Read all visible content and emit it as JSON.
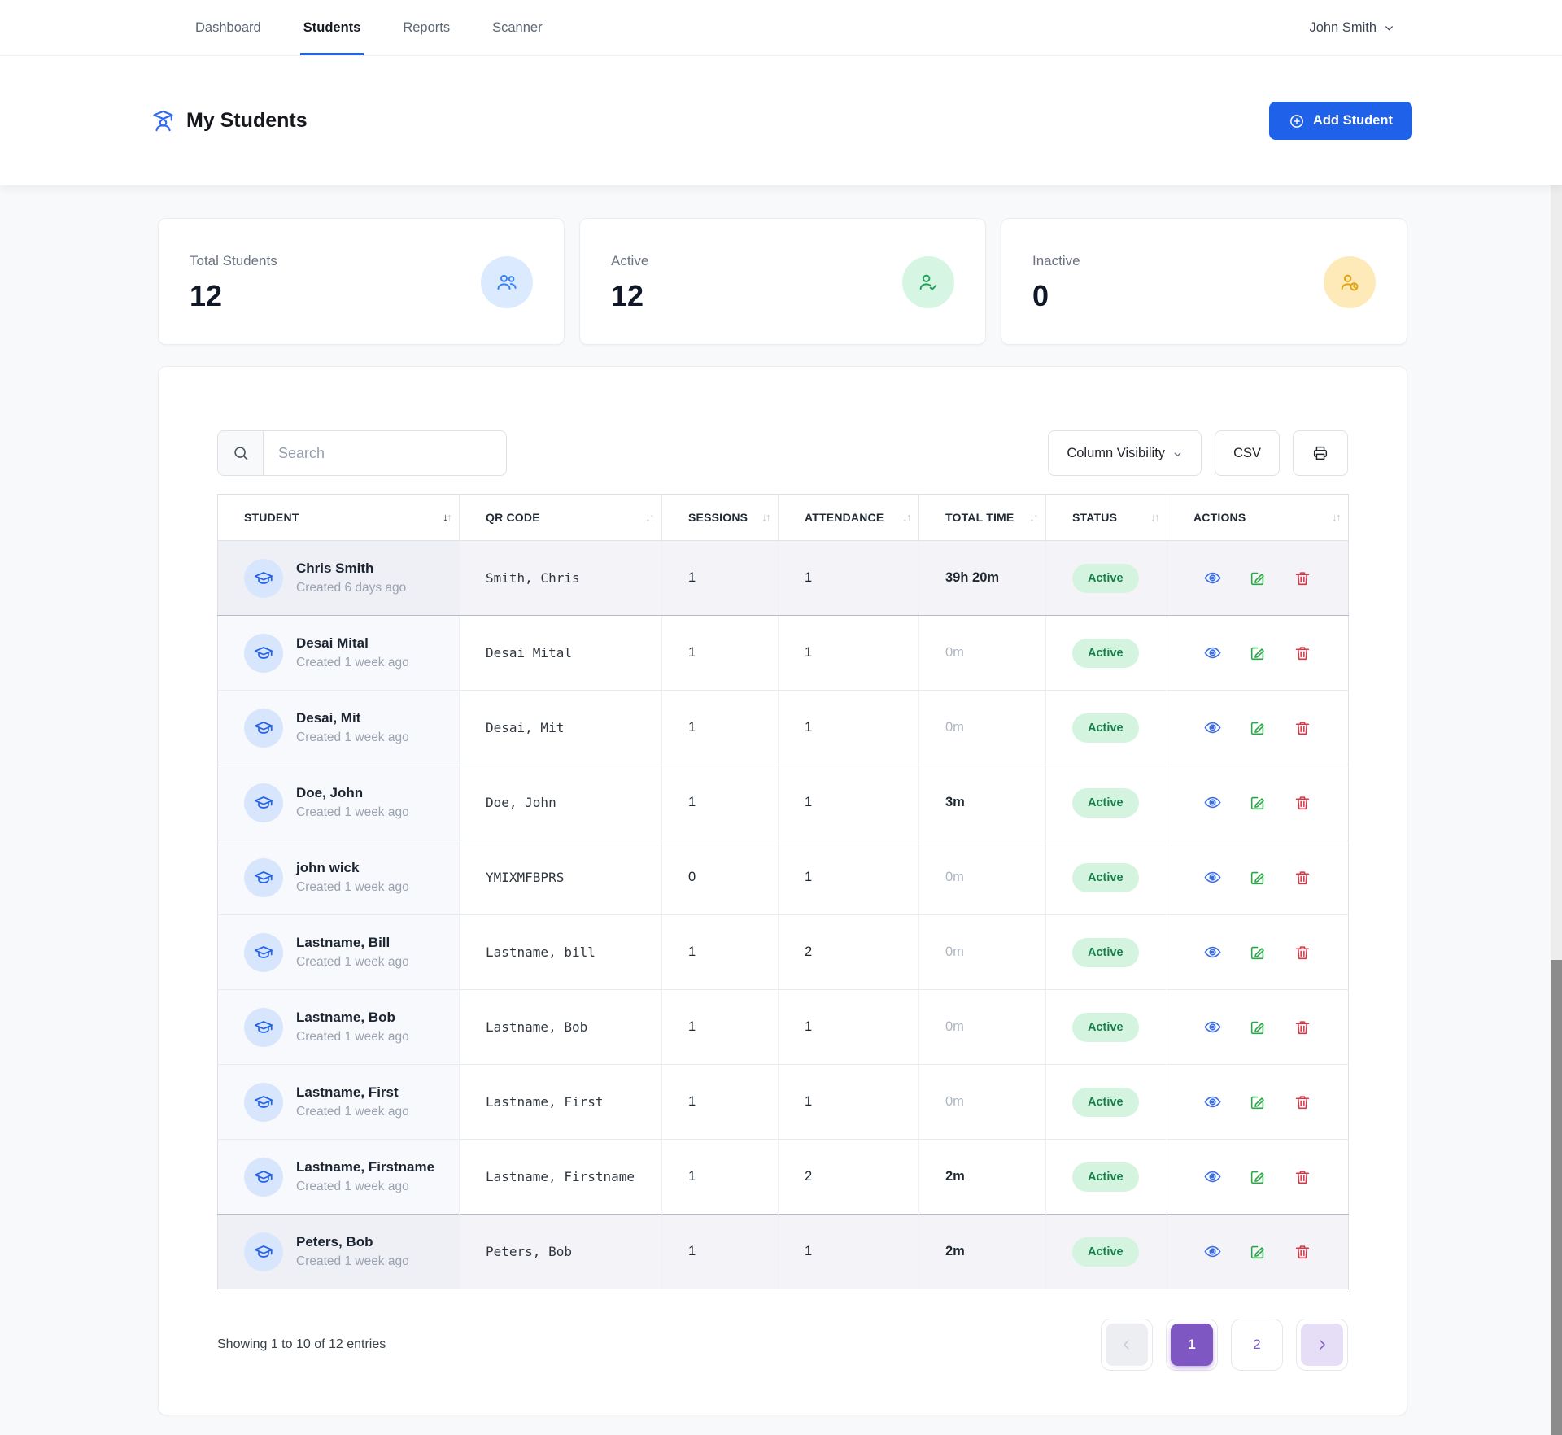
{
  "nav": {
    "items": [
      {
        "label": "Dashboard",
        "active": false
      },
      {
        "label": "Students",
        "active": true
      },
      {
        "label": "Reports",
        "active": false
      },
      {
        "label": "Scanner",
        "active": false
      }
    ],
    "user": {
      "name": "John Smith"
    }
  },
  "header": {
    "title": "My Students",
    "title_icon": "graduate-student-icon",
    "add_button": "Add Student"
  },
  "stats": [
    {
      "label": "Total Students",
      "value": "12",
      "icon": "users-icon",
      "icon_color": "#3b82f6",
      "icon_bg": "#dbeafe"
    },
    {
      "label": "Active",
      "value": "12",
      "icon": "user-check-icon",
      "icon_color": "#22a45d",
      "icon_bg": "#d6f5e3"
    },
    {
      "label": "Inactive",
      "value": "0",
      "icon": "user-clock-icon",
      "icon_color": "#dfa410",
      "icon_bg": "#fdeab8"
    }
  ],
  "toolbar": {
    "search_placeholder": "Search",
    "search_value": "",
    "column_visibility_label": "Column Visibility",
    "csv_label": "CSV",
    "print_icon": "printer-icon"
  },
  "table": {
    "columns": [
      {
        "label": "Student",
        "sorted": true
      },
      {
        "label": "QR Code",
        "sorted": false
      },
      {
        "label": "Sessions",
        "sorted": false
      },
      {
        "label": "Attendance",
        "sorted": false
      },
      {
        "label": "Total Time",
        "sorted": false
      },
      {
        "label": "Status",
        "sorted": false
      },
      {
        "label": "Actions",
        "sorted": false
      }
    ],
    "rows": [
      {
        "name": "Chris Smith",
        "created": "Created 6 days ago",
        "qr": "Smith, Chris",
        "sessions": "1",
        "attendance": "1",
        "total_time": "39h 20m",
        "time_muted": false,
        "status": "Active",
        "highlighted": true
      },
      {
        "name": "Desai Mital",
        "created": "Created 1 week ago",
        "qr": "Desai Mital",
        "sessions": "1",
        "attendance": "1",
        "total_time": "0m",
        "time_muted": true,
        "status": "Active",
        "highlighted": false
      },
      {
        "name": "Desai, Mit",
        "created": "Created 1 week ago",
        "qr": "Desai, Mit",
        "sessions": "1",
        "attendance": "1",
        "total_time": "0m",
        "time_muted": true,
        "status": "Active",
        "highlighted": false
      },
      {
        "name": "Doe, John",
        "created": "Created 1 week ago",
        "qr": "Doe, John",
        "sessions": "1",
        "attendance": "1",
        "total_time": "3m",
        "time_muted": false,
        "status": "Active",
        "highlighted": false
      },
      {
        "name": "john wick",
        "created": "Created 1 week ago",
        "qr": "YMIXMFBPRS",
        "sessions": "0",
        "attendance": "1",
        "total_time": "0m",
        "time_muted": true,
        "status": "Active",
        "highlighted": false
      },
      {
        "name": "Lastname, Bill",
        "created": "Created 1 week ago",
        "qr": "Lastname, bill",
        "sessions": "1",
        "attendance": "2",
        "total_time": "0m",
        "time_muted": true,
        "status": "Active",
        "highlighted": false
      },
      {
        "name": "Lastname, Bob",
        "created": "Created 1 week ago",
        "qr": "Lastname, Bob",
        "sessions": "1",
        "attendance": "1",
        "total_time": "0m",
        "time_muted": true,
        "status": "Active",
        "highlighted": false
      },
      {
        "name": "Lastname, First",
        "created": "Created 1 week ago",
        "qr": "Lastname, First",
        "sessions": "1",
        "attendance": "1",
        "total_time": "0m",
        "time_muted": true,
        "status": "Active",
        "highlighted": false
      },
      {
        "name": "Lastname, Firstname",
        "created": "Created 1 week ago",
        "qr": "Lastname, Firstname",
        "sessions": "1",
        "attendance": "2",
        "total_time": "2m",
        "time_muted": false,
        "status": "Active",
        "highlighted": false
      },
      {
        "name": "Peters, Bob",
        "created": "Created 1 week ago",
        "qr": "Peters, Bob",
        "sessions": "1",
        "attendance": "1",
        "total_time": "2m",
        "time_muted": false,
        "status": "Active",
        "highlighted": true
      }
    ],
    "row_actions": [
      "view",
      "edit",
      "delete"
    ],
    "status_colors": {
      "active_bg": "#d4f4e0",
      "active_text": "#17804a"
    }
  },
  "footer": {
    "showing": "Showing 1 to 10 of 12 entries",
    "pages": [
      "1",
      "2"
    ],
    "active_page": "1"
  },
  "colors": {
    "primary": "#1f62e9",
    "nav_active_underline": "#2563eb",
    "pagination_accent": "#7e57c2"
  }
}
